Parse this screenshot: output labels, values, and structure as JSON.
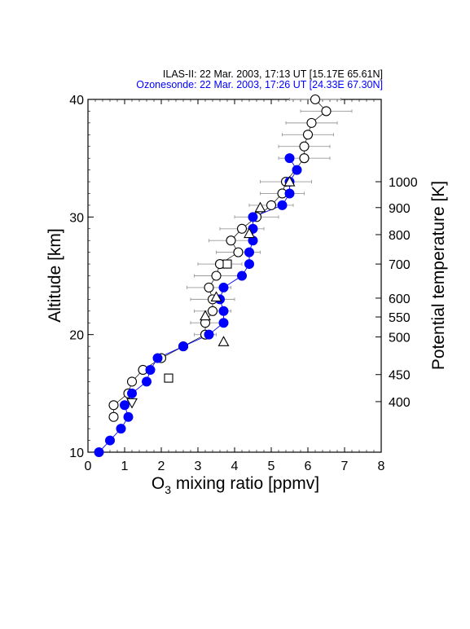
{
  "header": {
    "line1": "ILAS-II: 22 Mar. 2003, 17:13 UT [15.17E 65.61N]",
    "line2": "Ozonesonde: 22 Mar. 2003, 17:26 UT [24.33E 67.30N]",
    "line2_color": "#0000ff"
  },
  "chart_data": {
    "type": "scatter",
    "xlabel_main": "O",
    "xlabel_sub": "3",
    "xlabel_rest": " mixing ratio [ppmv]",
    "ylabel": "Altitude [km]",
    "y2label": "Potential temperature [K]",
    "xlim": [
      0,
      8
    ],
    "ylim": [
      10,
      40
    ],
    "x_ticks": [
      0,
      1,
      2,
      3,
      4,
      5,
      6,
      7,
      8
    ],
    "y_ticks": [
      10,
      20,
      30,
      40
    ],
    "y2_ticks": [
      {
        "label": "1000",
        "altitude": 33.0
      },
      {
        "label": "900",
        "altitude": 30.8
      },
      {
        "label": "800",
        "altitude": 28.5
      },
      {
        "label": "700",
        "altitude": 26.0
      },
      {
        "label": "600",
        "altitude": 23.1
      },
      {
        "label": "550",
        "altitude": 21.5
      },
      {
        "label": "500",
        "altitude": 19.8
      },
      {
        "label": "450",
        "altitude": 16.6
      },
      {
        "label": "400",
        "altitude": 14.3
      }
    ],
    "series": [
      {
        "marker": "open-circle",
        "color": "#000000",
        "points": [
          {
            "x": 0.7,
            "y": 13,
            "err": 0
          },
          {
            "x": 0.7,
            "y": 14,
            "err": 0
          },
          {
            "x": 1.1,
            "y": 15,
            "err": 0
          },
          {
            "x": 1.2,
            "y": 16,
            "err": 0
          },
          {
            "x": 1.5,
            "y": 17,
            "err": 0
          },
          {
            "x": 2.0,
            "y": 18,
            "err": 0
          },
          {
            "x": 2.6,
            "y": 19,
            "err": 0
          },
          {
            "x": 3.2,
            "y": 20,
            "err": 0.3
          },
          {
            "x": 3.2,
            "y": 21,
            "err": 0.4
          },
          {
            "x": 3.4,
            "y": 22,
            "err": 0.5
          },
          {
            "x": 3.4,
            "y": 23,
            "err": 0.6
          },
          {
            "x": 3.3,
            "y": 24,
            "err": 0.6
          },
          {
            "x": 3.5,
            "y": 25,
            "err": 0.6
          },
          {
            "x": 3.6,
            "y": 26,
            "err": 0.6
          },
          {
            "x": 4.1,
            "y": 27,
            "err": 0.6
          },
          {
            "x": 3.9,
            "y": 28,
            "err": 0.6
          },
          {
            "x": 4.2,
            "y": 29,
            "err": 0.6
          },
          {
            "x": 4.6,
            "y": 30,
            "err": 0.6
          },
          {
            "x": 5.0,
            "y": 31,
            "err": 0.6
          },
          {
            "x": 5.3,
            "y": 32,
            "err": 0.6
          },
          {
            "x": 5.4,
            "y": 33,
            "err": 0.7
          },
          {
            "x": 5.9,
            "y": 35,
            "err": 0.7
          },
          {
            "x": 5.9,
            "y": 36,
            "err": 0.7
          },
          {
            "x": 6.0,
            "y": 37,
            "err": 0.7
          },
          {
            "x": 6.1,
            "y": 38,
            "err": 0.7
          },
          {
            "x": 6.5,
            "y": 39,
            "err": 0.7
          },
          {
            "x": 6.2,
            "y": 40,
            "err": 0.7
          }
        ]
      },
      {
        "marker": "filled-circle",
        "color": "#0000ff",
        "points": [
          {
            "x": 0.3,
            "y": 10
          },
          {
            "x": 0.6,
            "y": 11
          },
          {
            "x": 0.9,
            "y": 12
          },
          {
            "x": 1.1,
            "y": 13
          },
          {
            "x": 1.0,
            "y": 14
          },
          {
            "x": 1.2,
            "y": 15
          },
          {
            "x": 1.6,
            "y": 16
          },
          {
            "x": 1.7,
            "y": 17
          },
          {
            "x": 1.9,
            "y": 18
          },
          {
            "x": 2.6,
            "y": 19
          },
          {
            "x": 3.3,
            "y": 20
          },
          {
            "x": 3.7,
            "y": 21
          },
          {
            "x": 3.7,
            "y": 22
          },
          {
            "x": 3.6,
            "y": 23
          },
          {
            "x": 3.7,
            "y": 24
          },
          {
            "x": 4.2,
            "y": 25
          },
          {
            "x": 4.4,
            "y": 26
          },
          {
            "x": 4.4,
            "y": 27
          },
          {
            "x": 4.5,
            "y": 28
          },
          {
            "x": 4.5,
            "y": 29
          },
          {
            "x": 4.5,
            "y": 30
          },
          {
            "x": 5.3,
            "y": 31
          },
          {
            "x": 5.5,
            "y": 32
          },
          {
            "x": 5.5,
            "y": 33
          },
          {
            "x": 5.7,
            "y": 34
          },
          {
            "x": 5.5,
            "y": 35
          }
        ]
      },
      {
        "marker": "triangle-up",
        "color": "#000000",
        "points": [
          {
            "x": 3.7,
            "y": 19.4
          },
          {
            "x": 3.2,
            "y": 21.6
          },
          {
            "x": 3.5,
            "y": 23.2
          },
          {
            "x": 4.4,
            "y": 28.6
          },
          {
            "x": 4.7,
            "y": 30.8
          },
          {
            "x": 5.5,
            "y": 33.0
          }
        ]
      },
      {
        "marker": "triangle-down",
        "color": "#000000",
        "points": [
          {
            "x": 1.2,
            "y": 14.2
          }
        ]
      },
      {
        "marker": "square",
        "color": "#000000",
        "points": [
          {
            "x": 2.2,
            "y": 16.3
          },
          {
            "x": 3.8,
            "y": 26.0
          }
        ]
      }
    ]
  }
}
